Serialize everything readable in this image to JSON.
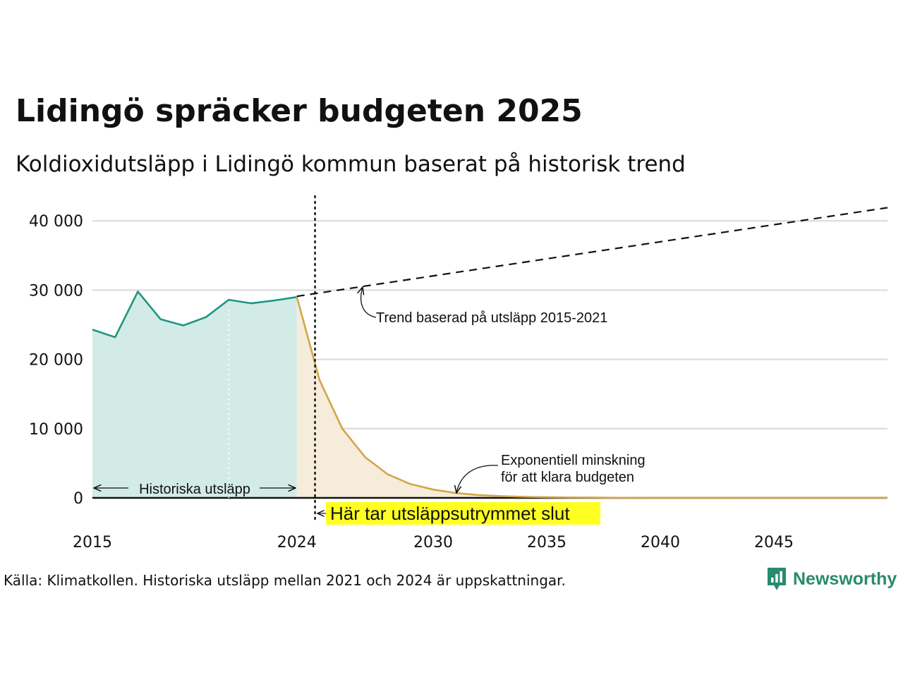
{
  "header": {
    "title": "Lidingö spräcker budgeten 2025",
    "subtitle": "Koldioxidutsläpp i Lidingö kommun baserat på historisk trend"
  },
  "footer": {
    "source": "Källa: Klimatkollen. Historiska utsläpp mellan 2021 och 2024 är uppskattningar.",
    "brand": "Newsworthy",
    "brand_icon": "newsworthy-chart-badge-icon"
  },
  "colors": {
    "historical_line": "#1f9582",
    "historical_fill": "#d2ebe6",
    "reduction_line": "#d4a548",
    "reduction_fill": "#f5ecdb",
    "trend_line": "#111111",
    "highlight_bg": "#ffff22",
    "brand": "#2a8a6d"
  },
  "chart_data": {
    "type": "area",
    "x_range": [
      2015,
      2050
    ],
    "y_range": [
      0,
      43000
    ],
    "grid": true,
    "x_ticks": [
      {
        "value": 2015,
        "label": "2015"
      },
      {
        "value": 2024,
        "label": "2024"
      },
      {
        "value": 2030,
        "label": "2030"
      },
      {
        "value": 2035,
        "label": "2035"
      },
      {
        "value": 2040,
        "label": "2040"
      },
      {
        "value": 2045,
        "label": "2045"
      }
    ],
    "y_ticks": [
      {
        "value": 0,
        "label": "0"
      },
      {
        "value": 10000,
        "label": "10 000"
      },
      {
        "value": 20000,
        "label": "20 000"
      },
      {
        "value": 30000,
        "label": "30 000"
      },
      {
        "value": 40000,
        "label": "40 000"
      }
    ],
    "series": [
      {
        "key": "historical",
        "x": [
          2015,
          2016,
          2017,
          2018,
          2019,
          2020,
          2021,
          2022,
          2023,
          2024
        ],
        "y": [
          24300,
          23200,
          29800,
          25800,
          24900,
          26100,
          28600,
          28100,
          28500,
          29000
        ]
      },
      {
        "key": "reduction",
        "x": [
          2024,
          2025,
          2026,
          2027,
          2028,
          2029,
          2030,
          2031,
          2032,
          2033,
          2034,
          2035,
          2036,
          2037,
          2038,
          2040,
          2043,
          2046,
          2050
        ],
        "y": [
          29000,
          17000,
          10000,
          5900,
          3400,
          2000,
          1200,
          700,
          400,
          250,
          150,
          90,
          60,
          40,
          25,
          10,
          5,
          2,
          0
        ]
      },
      {
        "key": "trend",
        "style": "dashed",
        "x": [
          2024,
          2050
        ],
        "y": [
          29100,
          41900
        ]
      }
    ],
    "markers": {
      "budget_end_year": 2024.8,
      "estimate_start_year": 2021
    },
    "annotations": {
      "trend": "Trend baserad på utsläpp 2015-2021",
      "reduction_line1": "Exponentiell minskning",
      "reduction_line2": "för att klara budgeten",
      "historical": "Historiska utsläpp",
      "budget_end": "Här tar utsläppsutrymmet slut"
    }
  }
}
